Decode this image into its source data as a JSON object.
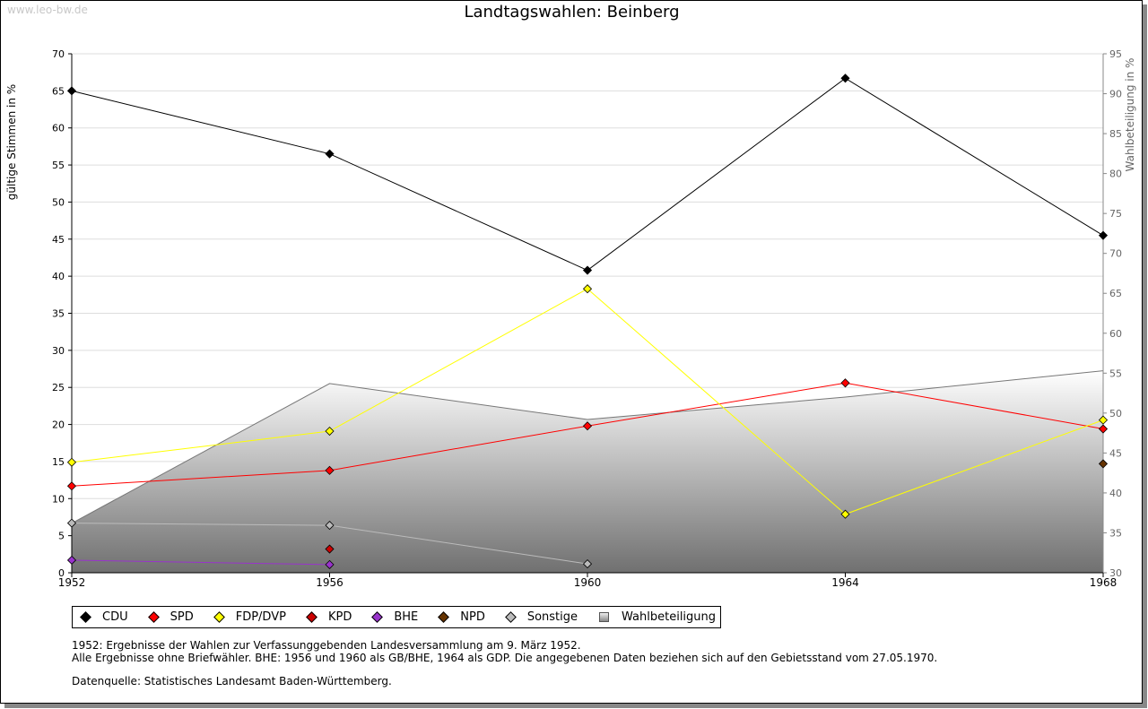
{
  "watermark": "www.leo-bw.de",
  "chart_data": {
    "type": "line",
    "title": "Landtagswahlen: Beinberg",
    "ylabel": "gültige Stimmen in %",
    "y2label": "Wahlbeteiligung in %",
    "xlabel": "",
    "x": [
      1952,
      1956,
      1960,
      1964,
      1968
    ],
    "xlim": [
      1952,
      1968
    ],
    "ylim": [
      0,
      70
    ],
    "y2lim": [
      30,
      95
    ],
    "yticks": [
      0,
      5,
      10,
      15,
      20,
      25,
      30,
      35,
      40,
      45,
      50,
      55,
      60,
      65,
      70
    ],
    "y2ticks": [
      30,
      35,
      40,
      45,
      50,
      55,
      60,
      65,
      70,
      75,
      80,
      85,
      90,
      95
    ],
    "grid": true,
    "legend_position": "bottom",
    "series": [
      {
        "name": "CDU",
        "color": "#000000",
        "values": [
          65.0,
          56.5,
          40.8,
          66.7,
          45.5
        ]
      },
      {
        "name": "SPD",
        "color": "#ff0000",
        "values": [
          11.7,
          13.8,
          19.8,
          25.6,
          19.4
        ]
      },
      {
        "name": "FDP/DVP",
        "color": "#ffff00",
        "values": [
          14.9,
          19.1,
          38.3,
          7.9,
          20.6
        ]
      },
      {
        "name": "KPD",
        "color": "#cc0000",
        "values": [
          null,
          3.2,
          null,
          null,
          null
        ]
      },
      {
        "name": "BHE",
        "color": "#9933cc",
        "values": [
          1.7,
          1.1,
          null,
          null,
          null
        ]
      },
      {
        "name": "NPD",
        "color": "#663300",
        "values": [
          null,
          null,
          null,
          null,
          14.7
        ]
      },
      {
        "name": "Sonstige",
        "color": "#bbbbbb",
        "values": [
          6.7,
          6.4,
          1.2,
          null,
          null
        ]
      }
    ],
    "turnout": {
      "name": "Wahlbeteiligung",
      "axis": "right",
      "values": [
        36.2,
        53.7,
        49.2,
        52.0,
        55.3
      ]
    }
  },
  "notes": {
    "line1": "1952: Ergebnisse der Wahlen zur Verfassunggebenden Landesversammlung am 9. März 1952.",
    "line2": "Alle Ergebnisse ohne Briefwähler. BHE: 1956 und 1960 als GB/BHE, 1964 als GDP. Die angegebenen Daten beziehen sich auf den Gebietsstand vom 27.05.1970.",
    "source": "Datenquelle: Statistisches Landesamt Baden-Württemberg."
  }
}
